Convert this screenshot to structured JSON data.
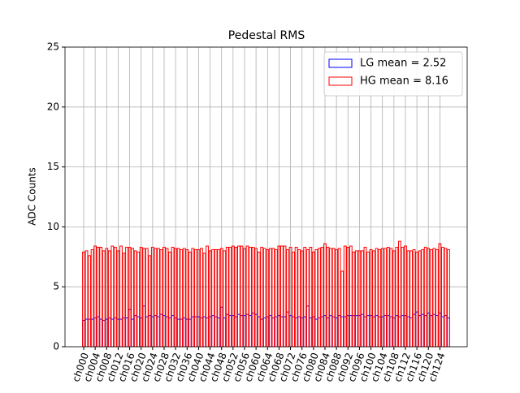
{
  "chart_data": {
    "type": "bar",
    "title": "Pedestal RMS",
    "y_label": "ADC Counts",
    "categories": [
      "ch000",
      null,
      null,
      null,
      "ch004",
      null,
      null,
      null,
      "ch008",
      null,
      null,
      null,
      "ch012",
      null,
      null,
      null,
      "ch016",
      null,
      null,
      null,
      "ch020",
      null,
      null,
      null,
      "ch024",
      null,
      null,
      null,
      "ch028",
      null,
      null,
      null,
      "ch032",
      null,
      null,
      null,
      "ch036",
      null,
      null,
      null,
      "ch040",
      null,
      null,
      null,
      "ch044",
      null,
      null,
      null,
      "ch048",
      null,
      null,
      null,
      "ch052",
      null,
      null,
      null,
      "ch056",
      null,
      null,
      null,
      "ch060",
      null,
      null,
      null,
      "ch064",
      null,
      null,
      null,
      "ch068",
      null,
      null,
      null,
      "ch072",
      null,
      null,
      null,
      "ch076",
      null,
      null,
      null,
      "ch080",
      null,
      null,
      null,
      "ch084",
      null,
      null,
      null,
      "ch088",
      null,
      null,
      null,
      "ch092",
      null,
      null,
      null,
      "ch096",
      null,
      null,
      null,
      "ch100",
      null,
      null,
      null,
      "ch104",
      null,
      null,
      null,
      "ch108",
      null,
      null,
      null,
      "ch112",
      null,
      null,
      null,
      "ch116",
      null,
      null,
      null,
      "ch120",
      null,
      null,
      null,
      "ch124",
      null,
      null,
      null
    ],
    "series": [
      {
        "name": "LG mean = 2.52",
        "color": "#0000ff",
        "values": [
          2.2,
          2.3,
          2.3,
          2.3,
          2.4,
          2.5,
          2.3,
          2.2,
          2.3,
          2.4,
          2.3,
          2.4,
          2.3,
          2.3,
          2.4,
          2.4,
          3.1,
          2.3,
          2.6,
          2.5,
          2.4,
          3.4,
          2.5,
          2.6,
          2.5,
          2.6,
          2.5,
          2.7,
          2.6,
          2.5,
          2.4,
          2.6,
          2.4,
          2.3,
          2.3,
          2.4,
          2.3,
          2.3,
          2.5,
          2.5,
          2.5,
          2.4,
          2.5,
          2.4,
          2.5,
          2.6,
          2.5,
          2.4,
          3.3,
          2.4,
          2.7,
          2.6,
          2.6,
          2.5,
          2.7,
          2.6,
          2.6,
          2.7,
          2.6,
          2.8,
          2.7,
          2.5,
          2.3,
          2.4,
          2.5,
          2.6,
          2.4,
          2.5,
          2.6,
          2.5,
          2.5,
          2.9,
          2.6,
          2.5,
          2.4,
          2.5,
          2.4,
          2.5,
          3.4,
          2.4,
          2.5,
          2.3,
          2.4,
          2.5,
          2.6,
          2.4,
          2.6,
          2.5,
          2.4,
          2.6,
          2.5,
          2.5,
          2.6,
          2.6,
          2.6,
          2.6,
          2.6,
          2.7,
          2.5,
          2.6,
          2.6,
          2.5,
          2.6,
          2.5,
          2.5,
          2.6,
          2.6,
          2.5,
          2.4,
          2.6,
          2.5,
          2.6,
          2.6,
          2.5,
          2.4,
          2.7,
          2.9,
          2.6,
          2.7,
          2.6,
          2.8,
          2.6,
          2.7,
          2.6,
          2.8,
          2.5,
          2.6,
          2.4
        ]
      },
      {
        "name": "HG mean = 8.16",
        "color": "#ff0000",
        "values": [
          7.9,
          8.0,
          7.6,
          8.1,
          8.4,
          8.3,
          8.3,
          8.0,
          8.2,
          8.0,
          8.4,
          8.3,
          8.0,
          8.4,
          7.8,
          8.3,
          8.3,
          8.2,
          8.0,
          7.9,
          8.3,
          8.2,
          8.2,
          7.6,
          8.3,
          8.2,
          8.2,
          8.1,
          8.3,
          8.2,
          7.9,
          8.3,
          8.2,
          8.2,
          8.1,
          8.2,
          8.1,
          7.9,
          8.2,
          8.1,
          8.1,
          8.2,
          7.8,
          8.4,
          8.0,
          8.1,
          8.1,
          8.1,
          8.2,
          8.0,
          8.3,
          8.3,
          8.4,
          8.3,
          8.4,
          8.4,
          8.2,
          8.4,
          8.3,
          8.3,
          8.2,
          7.9,
          8.3,
          8.2,
          8.1,
          8.2,
          8.2,
          8.1,
          8.4,
          8.4,
          8.4,
          8.1,
          8.3,
          7.9,
          8.3,
          8.1,
          8.0,
          8.3,
          8.1,
          8.3,
          7.9,
          8.1,
          8.2,
          8.3,
          8.6,
          8.3,
          8.2,
          8.2,
          8.1,
          8.2,
          6.3,
          8.4,
          8.3,
          8.4,
          7.9,
          8.0,
          8.0,
          8.0,
          8.3,
          7.9,
          8.1,
          8.0,
          8.2,
          8.1,
          8.2,
          8.2,
          8.3,
          8.2,
          8.0,
          8.3,
          8.8,
          8.3,
          8.4,
          8.0,
          8.0,
          8.1,
          7.9,
          8.0,
          8.1,
          8.3,
          8.2,
          8.1,
          8.2,
          8.1,
          8.6,
          8.3,
          8.2,
          8.1
        ]
      }
    ],
    "ylim": [
      0,
      25
    ],
    "yticks": [
      0,
      5,
      10,
      15,
      20,
      25
    ],
    "grid": true,
    "legend": "upper right"
  }
}
